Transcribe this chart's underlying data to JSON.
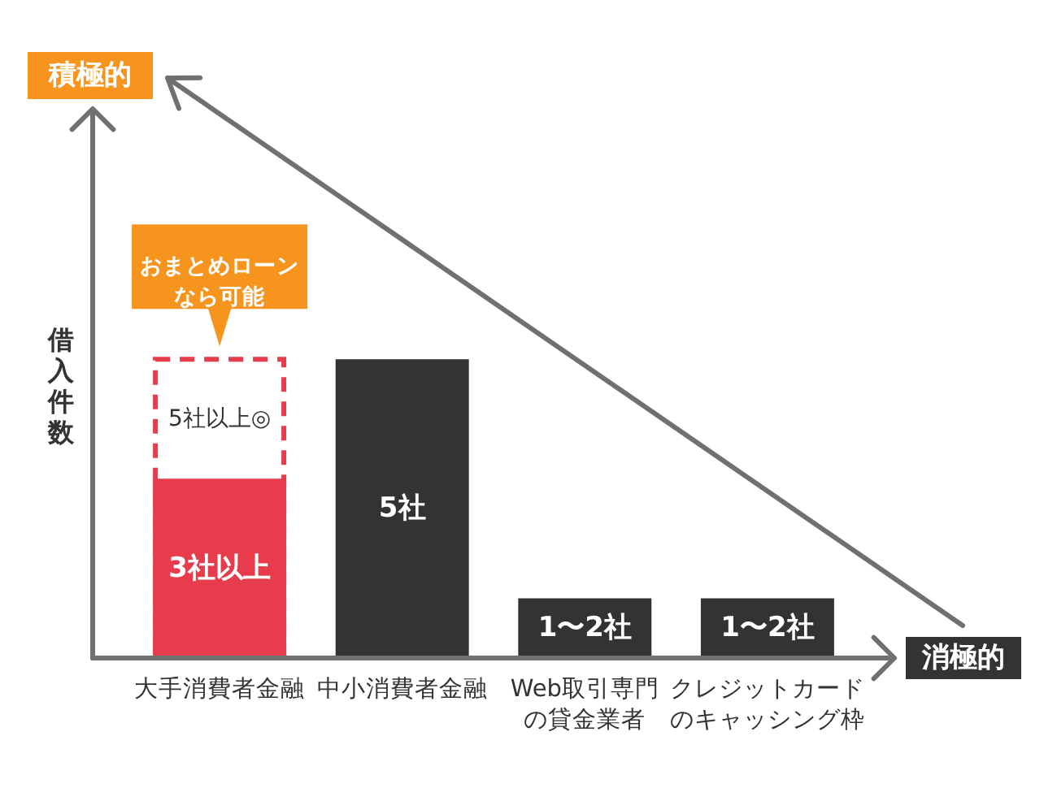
{
  "chart_data": {
    "type": "bar",
    "ylabel": "借入件数",
    "tick_labels": "x",
    "categories": [
      "大手消費者金融",
      "中小消費者金融",
      "Web取引専門の貸金業者",
      "クレジットカードのキャッシング枠"
    ],
    "series": [
      {
        "color": "#e63c4b",
        "line_style": "dashed",
        "values": [
          5,
          null,
          null,
          null
        ],
        "value_labels": [
          "5社以上◎",
          null,
          null,
          null
        ]
      },
      {
        "colors": [
          "#e63c4b",
          "#333333",
          "#333333",
          "#333333"
        ],
        "values": [
          3,
          5,
          1,
          1
        ],
        "value_labels": [
          "3社以上",
          "5社",
          "1〜2社",
          "1〜2社"
        ]
      }
    ],
    "annotations": [
      {
        "text": "おまとめローンなら可能",
        "x": "大手消費者金融",
        "y": 5
      },
      "積極的",
      "消極的"
    ]
  }
}
